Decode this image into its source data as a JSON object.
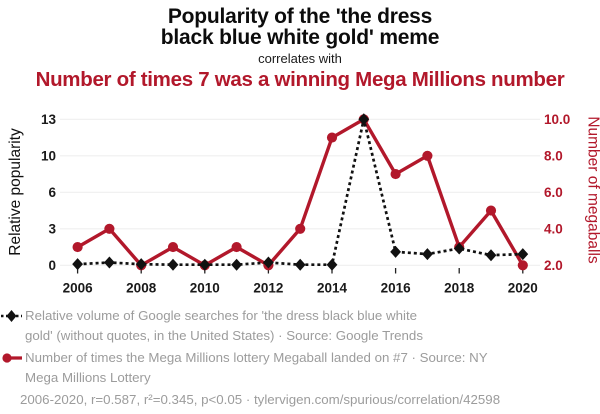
{
  "chart_data": {
    "type": "line",
    "title_lines": [
      "Popularity of the 'the dress",
      "black blue white gold' meme"
    ],
    "connector": "correlates with",
    "subtitle": "Number of times 7 was a winning Mega Millions number",
    "x": [
      2006,
      2007,
      2008,
      2009,
      2010,
      2011,
      2012,
      2013,
      2014,
      2015,
      2016,
      2017,
      2018,
      2019,
      2020
    ],
    "x_axis": {
      "tick_labels": [
        "2006",
        "2008",
        "2010",
        "2012",
        "2014",
        "2016",
        "2018",
        "2020"
      ],
      "tick_values": [
        2006,
        2008,
        2010,
        2012,
        2014,
        2016,
        2018,
        2020
      ],
      "range": [
        2006,
        2020
      ]
    },
    "left_axis": {
      "label": "Relative popularity",
      "color": "#111111",
      "tick_labels": [
        "13",
        "10",
        "6",
        "3",
        "0"
      ],
      "tick_values": [
        13,
        9.75,
        6.5,
        3.25,
        0
      ],
      "range": [
        0,
        13
      ]
    },
    "right_axis": {
      "label": "Number of megaballs",
      "color": "#b2182b",
      "tick_labels": [
        "10.0",
        "8.0",
        "6.0",
        "4.0",
        "2.0"
      ],
      "tick_values": [
        10,
        8,
        6,
        4,
        2
      ],
      "range": [
        2,
        10
      ]
    },
    "grid": true,
    "legend_position": "bottom",
    "series": [
      {
        "key": "google-trends",
        "axis": "left",
        "color": "#111111",
        "line_style": "dashed",
        "marker": "diamond",
        "values": [
          0.1,
          0.25,
          0.1,
          0.05,
          0.05,
          0.05,
          0.25,
          0.05,
          0.05,
          13,
          1.2,
          1,
          1.5,
          0.9,
          1
        ]
      },
      {
        "key": "megaballs",
        "axis": "right",
        "color": "#b2182b",
        "line_style": "solid",
        "marker": "circle",
        "values": [
          3,
          4,
          2,
          3,
          2,
          3,
          2,
          4,
          9,
          10,
          7,
          8,
          3,
          5,
          2
        ]
      }
    ],
    "legend": {
      "items": [
        {
          "marker": "black-diamond-dashed",
          "lines": [
            "Relative volume of Google searches for 'the dress black blue white",
            "gold' (without quotes, in the United States) · Source: Google Trends"
          ]
        },
        {
          "marker": "red-circle-line",
          "lines": [
            "Number of times the Mega Millions lottery Megaball landed on #7 · Source: NY",
            "Mega Millions Lottery"
          ]
        }
      ],
      "footer": "2006-2020, r=0.587, r²=0.345, p<0.05 · tylervigen.com/spurious/correlation/42598"
    }
  }
}
